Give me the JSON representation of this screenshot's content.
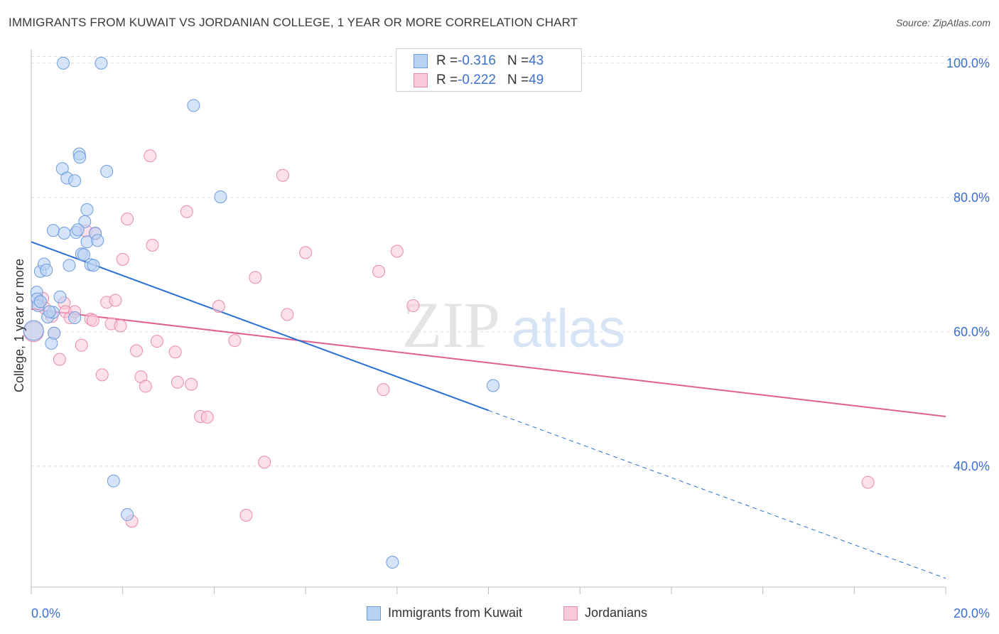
{
  "header": {
    "title": "IMMIGRANTS FROM KUWAIT VS JORDANIAN COLLEGE, 1 YEAR OR MORE CORRELATION CHART",
    "source": "Source: ZipAtlas.com"
  },
  "watermark": {
    "zip": "ZIP",
    "atlas": "atlas"
  },
  "legend_top": {
    "rows": [
      {
        "r_label": "R = ",
        "r_value": "-0.316",
        "n_label": "N = ",
        "n_value": "43"
      },
      {
        "r_label": "R = ",
        "r_value": "-0.222",
        "n_label": "N = ",
        "n_value": "49"
      }
    ]
  },
  "legend_bottom": {
    "items": [
      "Immigrants from Kuwait",
      "Jordanians"
    ]
  },
  "colors": {
    "kuwait_fill": "#b9d2f4",
    "kuwait_stroke": "#6d9be0",
    "kuwait_line": "#2a6fd4",
    "jordan_fill": "#f9c9d7",
    "jordan_stroke": "#e98aa8",
    "jordan_line": "#e0608c",
    "tick_label": "#3b6fd1",
    "grid": "#dddddd"
  },
  "chart_data": {
    "type": "scatter",
    "title": "IMMIGRANTS FROM KUWAIT VS JORDANIAN COLLEGE, 1 YEAR OR MORE CORRELATION CHART",
    "xlabel": "",
    "ylabel": "College, 1 year or more",
    "xlim": [
      0,
      20
    ],
    "ylim": [
      22,
      102
    ],
    "x_tick_labels": [
      "0.0%",
      "20.0%"
    ],
    "y_ticks": [
      40,
      60,
      80,
      100
    ],
    "y_tick_labels": [
      "40.0%",
      "60.0%",
      "80.0%",
      "100.0%"
    ],
    "grid": true,
    "legend_position": "bottom",
    "series": [
      {
        "name": "Immigrants from Kuwait",
        "r": -0.316,
        "n": 43,
        "points": [
          [
            0.05,
            60.2
          ],
          [
            0.12,
            65.9
          ],
          [
            0.13,
            64.9
          ],
          [
            0.15,
            63.9
          ],
          [
            0.2,
            69.0
          ],
          [
            0.28,
            70.1
          ],
          [
            0.33,
            69.2
          ],
          [
            0.36,
            62.2
          ],
          [
            0.44,
            58.3
          ],
          [
            0.48,
            62.9
          ],
          [
            0.5,
            59.8
          ],
          [
            0.48,
            75.1
          ],
          [
            0.63,
            65.2
          ],
          [
            0.68,
            84.3
          ],
          [
            0.72,
            74.7
          ],
          [
            0.78,
            82.9
          ],
          [
            0.83,
            69.9
          ],
          [
            0.7,
            100.0
          ],
          [
            0.95,
            82.5
          ],
          [
            0.98,
            74.8
          ],
          [
            1.05,
            86.5
          ],
          [
            1.06,
            86.0
          ],
          [
            1.1,
            71.6
          ],
          [
            1.15,
            71.5
          ],
          [
            1.17,
            76.4
          ],
          [
            1.22,
            73.4
          ],
          [
            1.22,
            78.2
          ],
          [
            1.3,
            70.0
          ],
          [
            1.36,
            69.9
          ],
          [
            1.4,
            74.7
          ],
          [
            1.45,
            73.6
          ],
          [
            1.53,
            100.0
          ],
          [
            1.65,
            83.9
          ],
          [
            0.95,
            62.1
          ],
          [
            1.8,
            37.8
          ],
          [
            2.1,
            32.8
          ],
          [
            3.55,
            93.7
          ],
          [
            4.14,
            80.1
          ],
          [
            7.9,
            25.7
          ],
          [
            10.1,
            52.0
          ],
          [
            0.2,
            64.5
          ],
          [
            0.4,
            63.0
          ],
          [
            1.02,
            75.2
          ]
        ],
        "trend_solid": [
          [
            0.0,
            73.4
          ],
          [
            10.0,
            48.3
          ]
        ],
        "trend_dashed": [
          [
            10.0,
            48.3
          ],
          [
            20.0,
            23.3
          ]
        ]
      },
      {
        "name": "Jordanians",
        "r": -0.222,
        "n": 49,
        "points": [
          [
            0.05,
            60.0
          ],
          [
            0.15,
            64.3
          ],
          [
            0.25,
            65.0
          ],
          [
            0.3,
            63.5
          ],
          [
            0.45,
            62.3
          ],
          [
            0.5,
            59.8
          ],
          [
            0.62,
            55.9
          ],
          [
            0.72,
            64.3
          ],
          [
            0.75,
            63.0
          ],
          [
            0.85,
            62.1
          ],
          [
            0.95,
            63.0
          ],
          [
            1.1,
            58.0
          ],
          [
            1.2,
            75.0
          ],
          [
            1.3,
            61.9
          ],
          [
            1.35,
            61.7
          ],
          [
            1.4,
            74.6
          ],
          [
            1.55,
            53.6
          ],
          [
            1.65,
            64.4
          ],
          [
            1.75,
            61.2
          ],
          [
            1.84,
            64.7
          ],
          [
            1.95,
            60.9
          ],
          [
            2.0,
            70.8
          ],
          [
            2.1,
            76.8
          ],
          [
            2.2,
            31.8
          ],
          [
            2.3,
            57.2
          ],
          [
            2.4,
            53.3
          ],
          [
            2.5,
            51.9
          ],
          [
            2.6,
            86.2
          ],
          [
            2.65,
            72.9
          ],
          [
            2.75,
            58.6
          ],
          [
            3.15,
            57.0
          ],
          [
            3.2,
            52.5
          ],
          [
            3.4,
            77.9
          ],
          [
            3.5,
            52.2
          ],
          [
            3.7,
            47.4
          ],
          [
            3.85,
            47.3
          ],
          [
            4.1,
            63.8
          ],
          [
            4.45,
            58.7
          ],
          [
            4.7,
            32.7
          ],
          [
            4.9,
            68.1
          ],
          [
            5.1,
            40.6
          ],
          [
            5.5,
            83.3
          ],
          [
            5.6,
            62.6
          ],
          [
            6.0,
            71.8
          ],
          [
            7.6,
            69.0
          ],
          [
            7.7,
            51.4
          ],
          [
            8.0,
            72.0
          ],
          [
            8.35,
            63.9
          ],
          [
            18.3,
            37.6
          ]
        ],
        "trend_solid": [
          [
            0.0,
            63.4
          ],
          [
            20.0,
            47.4
          ]
        ]
      }
    ]
  }
}
